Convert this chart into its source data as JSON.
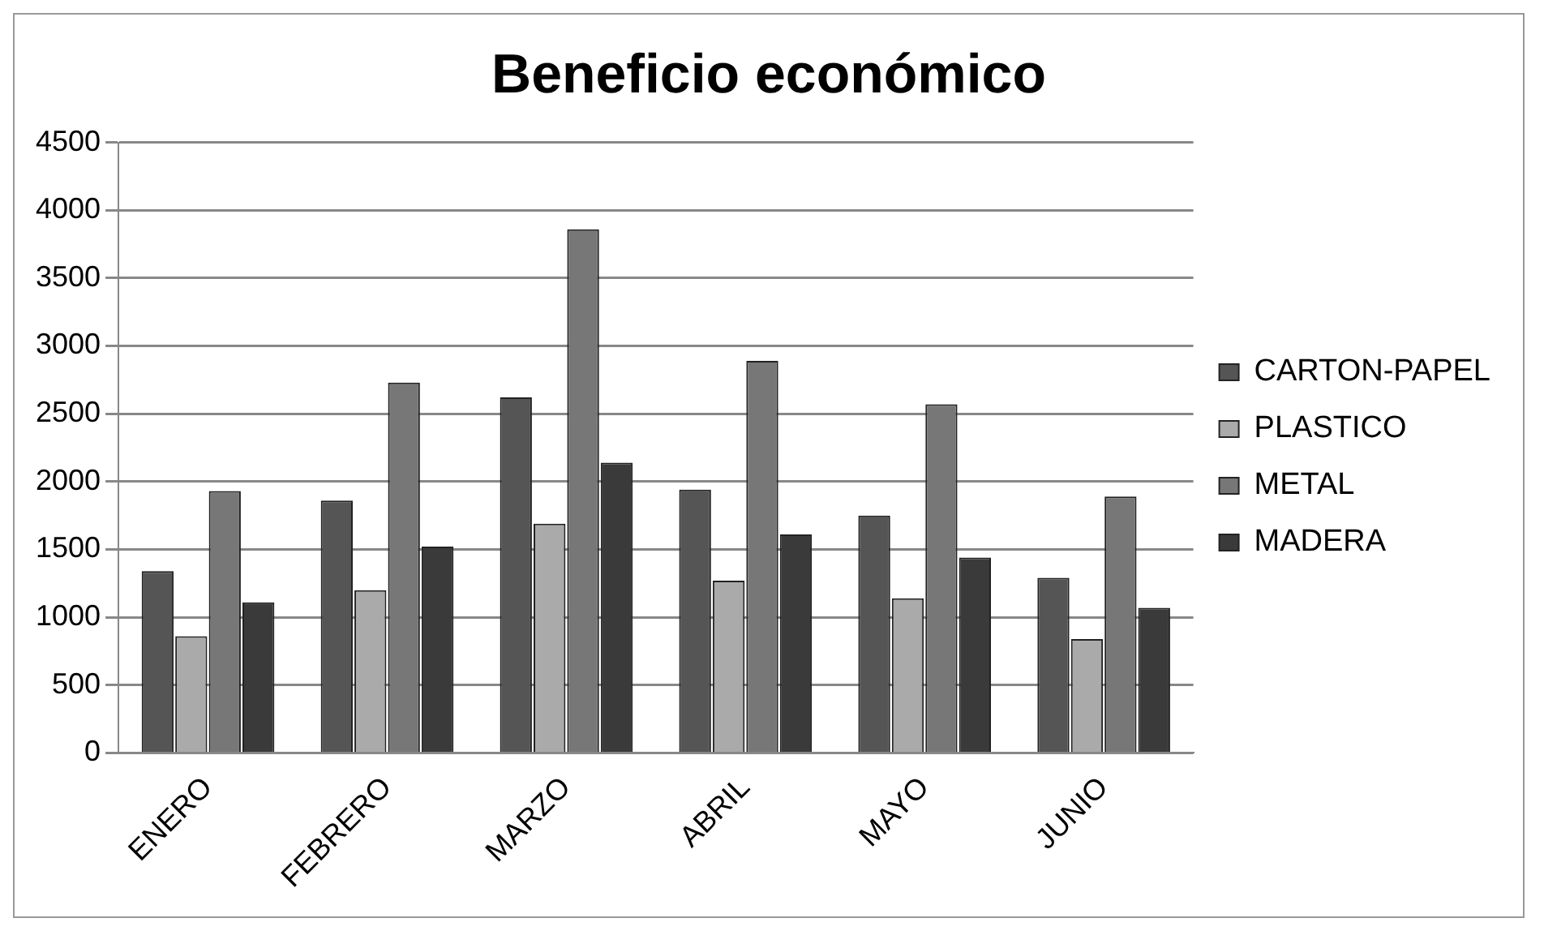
{
  "chart_data": {
    "type": "bar",
    "title": "Beneficio económico",
    "categories": [
      "ENERO",
      "FEBRERO",
      "MARZO",
      "ABRIL",
      "MAYO",
      "JUNIO"
    ],
    "series": [
      {
        "name": "CARTON-PAPEL",
        "color": "#555555",
        "values": [
          1340,
          1860,
          2620,
          1940,
          1750,
          1290
        ]
      },
      {
        "name": "PLASTICO",
        "color": "#aaaaaa",
        "values": [
          860,
          1200,
          1690,
          1270,
          1140,
          840
        ]
      },
      {
        "name": "METAL",
        "color": "#777777",
        "values": [
          1930,
          2730,
          3860,
          2890,
          2570,
          1890
        ]
      },
      {
        "name": "MADERA",
        "color": "#3a3a3a",
        "values": [
          1110,
          1520,
          2140,
          1610,
          1440,
          1070
        ]
      }
    ],
    "ylim": [
      0,
      4500
    ],
    "yticks": [
      0,
      500,
      1000,
      1500,
      2000,
      2500,
      3000,
      3500,
      4000,
      4500
    ],
    "grid": "y",
    "legend": "right"
  }
}
